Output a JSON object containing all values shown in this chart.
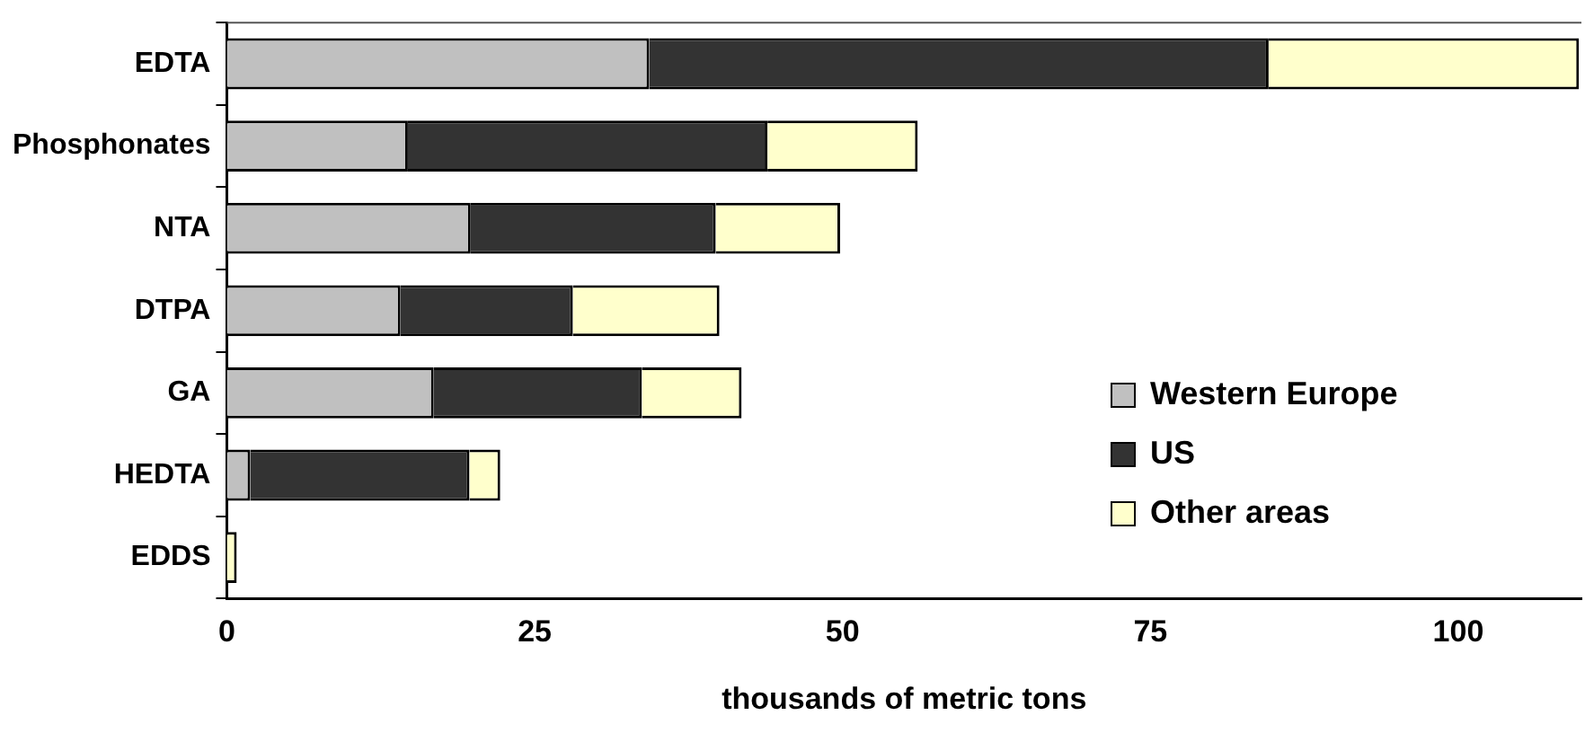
{
  "chart_data": {
    "type": "bar",
    "orientation": "horizontal",
    "stacked": true,
    "xlabel": "thousands of metric tons",
    "categories": [
      "EDTA",
      "Phosphonates",
      "NTA",
      "DTPA",
      "GA",
      "HEDTA",
      "EDDS"
    ],
    "series": [
      {
        "name": "Western Europe",
        "color": "#c0c0c0",
        "values": [
          34.3,
          14.7,
          19.8,
          14.1,
          16.8,
          1.9,
          0
        ]
      },
      {
        "name": "US",
        "color": "#333333",
        "values": [
          50.3,
          29.2,
          19.9,
          14,
          16.9,
          17.8,
          0
        ]
      },
      {
        "name": "Other areas",
        "color": "#ffffcc",
        "values": [
          25.2,
          12.2,
          10.1,
          11.9,
          8.1,
          2.5,
          0.8
        ]
      }
    ],
    "xlim": [
      0,
      110
    ],
    "xticks": [
      0,
      25,
      50,
      75,
      100
    ],
    "grid": false,
    "legend": "bottom right"
  }
}
